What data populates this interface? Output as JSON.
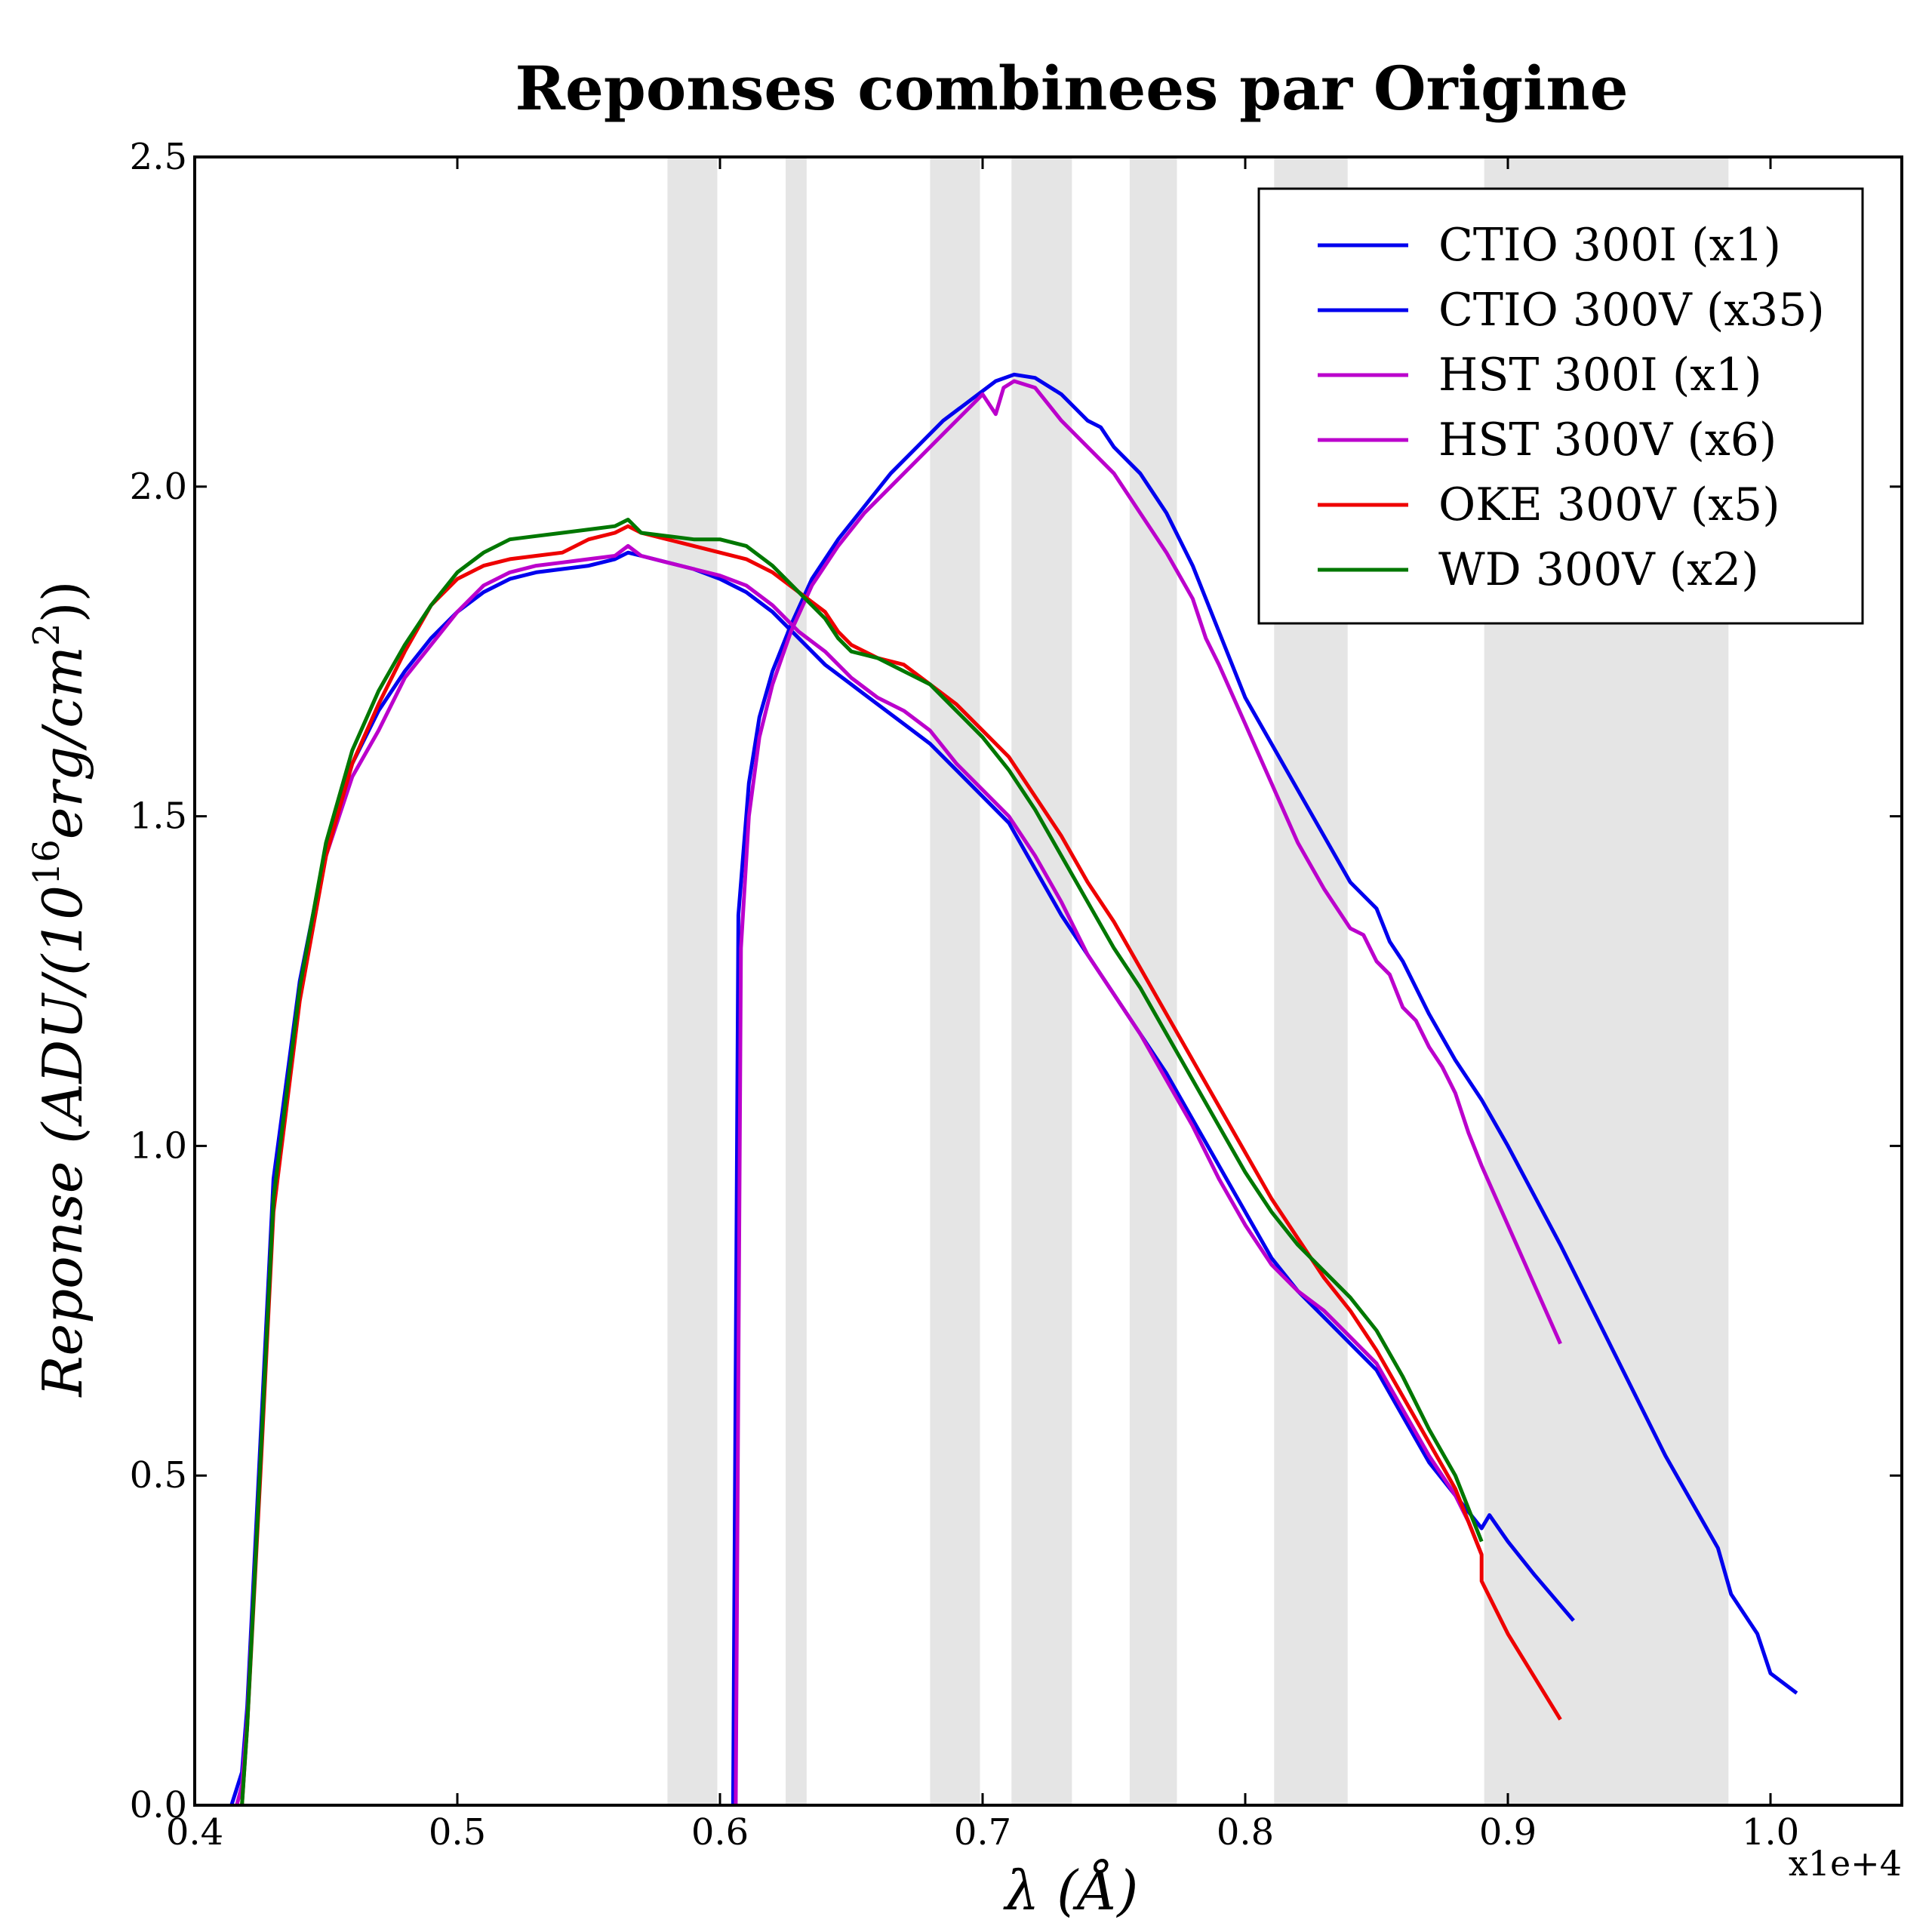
{
  "chart_data": {
    "type": "line",
    "title": "Reponses combinees par Origine",
    "xlabel": "λ (Å)",
    "ylabel": "Reponse (ADU/(10^16 erg/cm^2))",
    "ylabel_parts": {
      "pre": "Reponse (ADU/(10",
      "sup1": "16",
      "mid": "erg/cm",
      "sup2": "2",
      "post": "))"
    },
    "x_multiplier": "x1e+4",
    "xlim": [
      0.4,
      1.05
    ],
    "ylim": [
      0.0,
      2.5
    ],
    "xticks": [
      0.4,
      0.5,
      0.6,
      0.7,
      0.8,
      0.9,
      1.0
    ],
    "xtick_labels": [
      "0.4",
      "0.5",
      "0.6",
      "0.7",
      "0.8",
      "0.9",
      "1.0"
    ],
    "yticks": [
      0.0,
      0.5,
      1.0,
      1.5,
      2.0,
      2.5
    ],
    "ytick_labels": [
      "0.0",
      "0.5",
      "1.0",
      "1.5",
      "2.0",
      "2.5"
    ],
    "legend_position": "top-right",
    "shaded_bands": [
      [
        0.58,
        0.599
      ],
      [
        0.625,
        0.633
      ],
      [
        0.68,
        0.699
      ],
      [
        0.711,
        0.734
      ],
      [
        0.756,
        0.774
      ],
      [
        0.811,
        0.839
      ],
      [
        0.891,
        0.984
      ]
    ],
    "band_color": "#e5e5e5",
    "series": [
      {
        "name": "CTIO 300I (x1)",
        "color": "#0000ee",
        "x": [
          0.605,
          0.607,
          0.611,
          0.615,
          0.62,
          0.627,
          0.635,
          0.645,
          0.655,
          0.665,
          0.675,
          0.685,
          0.695,
          0.705,
          0.712,
          0.72,
          0.73,
          0.74,
          0.745,
          0.75,
          0.76,
          0.77,
          0.78,
          0.79,
          0.8,
          0.81,
          0.82,
          0.83,
          0.84,
          0.85,
          0.855,
          0.86,
          0.87,
          0.88,
          0.89,
          0.9,
          0.92,
          0.94,
          0.96,
          0.98,
          0.985,
          0.995,
          1.0,
          1.01
        ],
        "y": [
          0.0,
          1.35,
          1.55,
          1.65,
          1.72,
          1.79,
          1.86,
          1.92,
          1.97,
          2.02,
          2.06,
          2.1,
          2.13,
          2.16,
          2.17,
          2.165,
          2.14,
          2.1,
          2.09,
          2.06,
          2.02,
          1.96,
          1.88,
          1.78,
          1.68,
          1.61,
          1.54,
          1.47,
          1.4,
          1.36,
          1.31,
          1.28,
          1.2,
          1.13,
          1.07,
          1.0,
          0.85,
          0.69,
          0.53,
          0.39,
          0.32,
          0.26,
          0.2,
          0.17
        ]
      },
      {
        "name": "CTIO 300V (x35)",
        "color": "#0000ee",
        "x": [
          0.414,
          0.418,
          0.42,
          0.425,
          0.43,
          0.44,
          0.45,
          0.46,
          0.47,
          0.48,
          0.49,
          0.5,
          0.51,
          0.52,
          0.53,
          0.54,
          0.55,
          0.56,
          0.565,
          0.57,
          0.58,
          0.59,
          0.6,
          0.61,
          0.62,
          0.63,
          0.64,
          0.65,
          0.66,
          0.67,
          0.68,
          0.69,
          0.7,
          0.71,
          0.72,
          0.73,
          0.74,
          0.75,
          0.76,
          0.77,
          0.78,
          0.79,
          0.8,
          0.81,
          0.82,
          0.83,
          0.84,
          0.85,
          0.86,
          0.87,
          0.88,
          0.89,
          0.893,
          0.9,
          0.91,
          0.925
        ],
        "y": [
          0.0,
          0.05,
          0.15,
          0.55,
          0.95,
          1.25,
          1.45,
          1.58,
          1.66,
          1.72,
          1.77,
          1.81,
          1.84,
          1.86,
          1.87,
          1.875,
          1.88,
          1.89,
          1.9,
          1.895,
          1.885,
          1.875,
          1.86,
          1.84,
          1.81,
          1.77,
          1.73,
          1.7,
          1.67,
          1.64,
          1.61,
          1.57,
          1.53,
          1.49,
          1.42,
          1.35,
          1.29,
          1.23,
          1.17,
          1.11,
          1.04,
          0.97,
          0.9,
          0.83,
          0.78,
          0.74,
          0.7,
          0.66,
          0.59,
          0.52,
          0.47,
          0.42,
          0.44,
          0.4,
          0.35,
          0.28
        ]
      },
      {
        "name": "HST 300I (x1)",
        "color": "#bb00cc",
        "x": [
          0.606,
          0.608,
          0.611,
          0.615,
          0.62,
          0.627,
          0.635,
          0.645,
          0.655,
          0.665,
          0.675,
          0.685,
          0.695,
          0.7,
          0.705,
          0.708,
          0.712,
          0.72,
          0.73,
          0.74,
          0.75,
          0.76,
          0.77,
          0.78,
          0.785,
          0.79,
          0.8,
          0.81,
          0.82,
          0.83,
          0.84,
          0.845,
          0.85,
          0.855,
          0.86,
          0.865,
          0.87,
          0.875,
          0.88,
          0.885,
          0.89,
          0.9,
          0.91,
          0.92
        ],
        "y": [
          0.0,
          1.3,
          1.5,
          1.62,
          1.7,
          1.78,
          1.85,
          1.91,
          1.96,
          2.0,
          2.04,
          2.08,
          2.12,
          2.14,
          2.11,
          2.15,
          2.16,
          2.15,
          2.1,
          2.06,
          2.02,
          1.96,
          1.9,
          1.83,
          1.77,
          1.73,
          1.64,
          1.55,
          1.46,
          1.39,
          1.33,
          1.32,
          1.28,
          1.26,
          1.21,
          1.19,
          1.15,
          1.12,
          1.08,
          1.02,
          0.97,
          0.88,
          0.79,
          0.7
        ]
      },
      {
        "name": "HST 300V (x6)",
        "color": "#bb00cc",
        "x": [
          0.416,
          0.418,
          0.42,
          0.425,
          0.43,
          0.44,
          0.45,
          0.46,
          0.47,
          0.48,
          0.49,
          0.5,
          0.51,
          0.52,
          0.53,
          0.54,
          0.55,
          0.56,
          0.565,
          0.57,
          0.58,
          0.59,
          0.6,
          0.61,
          0.62,
          0.63,
          0.64,
          0.65,
          0.66,
          0.67,
          0.68,
          0.69,
          0.7,
          0.71,
          0.72,
          0.73,
          0.74,
          0.75,
          0.76,
          0.77,
          0.78,
          0.79,
          0.8,
          0.81,
          0.82,
          0.83,
          0.84,
          0.85,
          0.86,
          0.87,
          0.88,
          0.885,
          0.89
        ],
        "y": [
          0.0,
          0.03,
          0.13,
          0.52,
          0.92,
          1.23,
          1.44,
          1.56,
          1.63,
          1.71,
          1.76,
          1.81,
          1.85,
          1.87,
          1.88,
          1.885,
          1.89,
          1.895,
          1.91,
          1.895,
          1.885,
          1.875,
          1.865,
          1.85,
          1.82,
          1.78,
          1.75,
          1.71,
          1.68,
          1.66,
          1.63,
          1.58,
          1.54,
          1.5,
          1.44,
          1.37,
          1.29,
          1.23,
          1.17,
          1.1,
          1.03,
          0.95,
          0.88,
          0.82,
          0.78,
          0.75,
          0.71,
          0.67,
          0.6,
          0.53,
          0.47,
          0.43,
          0.38
        ]
      },
      {
        "name": "OKE 300V (x5)",
        "color": "#ee0000",
        "x": [
          0.418,
          0.42,
          0.425,
          0.43,
          0.44,
          0.45,
          0.46,
          0.47,
          0.48,
          0.49,
          0.5,
          0.51,
          0.52,
          0.53,
          0.54,
          0.55,
          0.56,
          0.565,
          0.57,
          0.58,
          0.59,
          0.6,
          0.61,
          0.62,
          0.63,
          0.64,
          0.645,
          0.65,
          0.66,
          0.67,
          0.68,
          0.69,
          0.7,
          0.71,
          0.72,
          0.73,
          0.74,
          0.75,
          0.76,
          0.77,
          0.78,
          0.79,
          0.8,
          0.81,
          0.82,
          0.83,
          0.84,
          0.85,
          0.86,
          0.87,
          0.88,
          0.885,
          0.89,
          0.89,
          0.9,
          0.92
        ],
        "y": [
          0.0,
          0.12,
          0.5,
          0.9,
          1.22,
          1.44,
          1.58,
          1.67,
          1.75,
          1.82,
          1.86,
          1.88,
          1.89,
          1.895,
          1.9,
          1.92,
          1.93,
          1.94,
          1.93,
          1.92,
          1.91,
          1.9,
          1.89,
          1.87,
          1.84,
          1.81,
          1.78,
          1.76,
          1.74,
          1.73,
          1.7,
          1.67,
          1.63,
          1.59,
          1.53,
          1.47,
          1.4,
          1.34,
          1.27,
          1.2,
          1.13,
          1.06,
          0.99,
          0.92,
          0.86,
          0.8,
          0.75,
          0.69,
          0.62,
          0.55,
          0.48,
          0.43,
          0.38,
          0.34,
          0.26,
          0.13
        ]
      },
      {
        "name": "WD 300V (x2)",
        "color": "#007700",
        "x": [
          0.418,
          0.42,
          0.425,
          0.43,
          0.44,
          0.45,
          0.46,
          0.47,
          0.48,
          0.49,
          0.5,
          0.51,
          0.52,
          0.53,
          0.54,
          0.55,
          0.56,
          0.565,
          0.57,
          0.58,
          0.59,
          0.6,
          0.61,
          0.62,
          0.63,
          0.64,
          0.645,
          0.65,
          0.66,
          0.67,
          0.68,
          0.69,
          0.7,
          0.71,
          0.72,
          0.73,
          0.74,
          0.75,
          0.76,
          0.77,
          0.78,
          0.79,
          0.8,
          0.81,
          0.82,
          0.83,
          0.84,
          0.85,
          0.86,
          0.87,
          0.88,
          0.885,
          0.89
        ],
        "y": [
          0.0,
          0.12,
          0.52,
          0.92,
          1.24,
          1.46,
          1.6,
          1.69,
          1.76,
          1.82,
          1.87,
          1.9,
          1.92,
          1.925,
          1.93,
          1.935,
          1.94,
          1.95,
          1.93,
          1.925,
          1.92,
          1.92,
          1.91,
          1.88,
          1.84,
          1.8,
          1.77,
          1.75,
          1.74,
          1.72,
          1.7,
          1.66,
          1.62,
          1.57,
          1.51,
          1.44,
          1.37,
          1.3,
          1.24,
          1.17,
          1.1,
          1.03,
          0.96,
          0.9,
          0.85,
          0.81,
          0.77,
          0.72,
          0.65,
          0.57,
          0.5,
          0.45,
          0.4
        ]
      }
    ]
  }
}
